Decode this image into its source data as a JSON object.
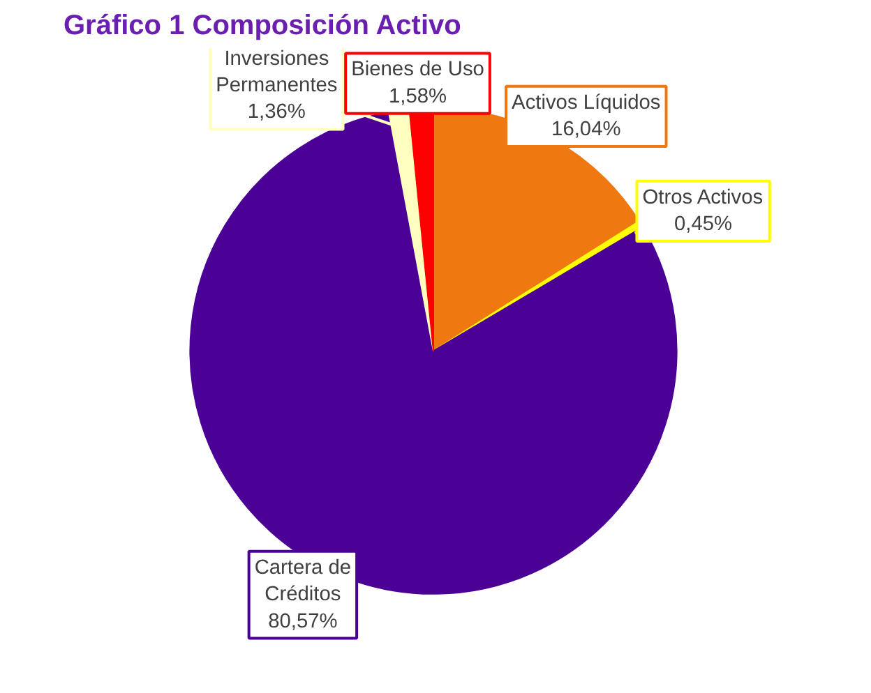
{
  "chart_data": {
    "type": "pie",
    "title": "Composición Activo",
    "annotations": [
      "Gráfico 1"
    ],
    "categories": [
      "Activos Líquidos",
      "Otros Activos",
      "Cartera de Créditos",
      "Inversiones Permanentes",
      "Bienes de Uso"
    ],
    "values": [
      16.04,
      0.45,
      80.57,
      1.36,
      1.58
    ],
    "value_labels": [
      "16,04%",
      "0,45%",
      "80,57%",
      "1,36%",
      "1,58%"
    ],
    "colors": [
      "#f07810",
      "#ffff00",
      "#4b0096",
      "#ffffc0",
      "#ff0000"
    ]
  }
}
